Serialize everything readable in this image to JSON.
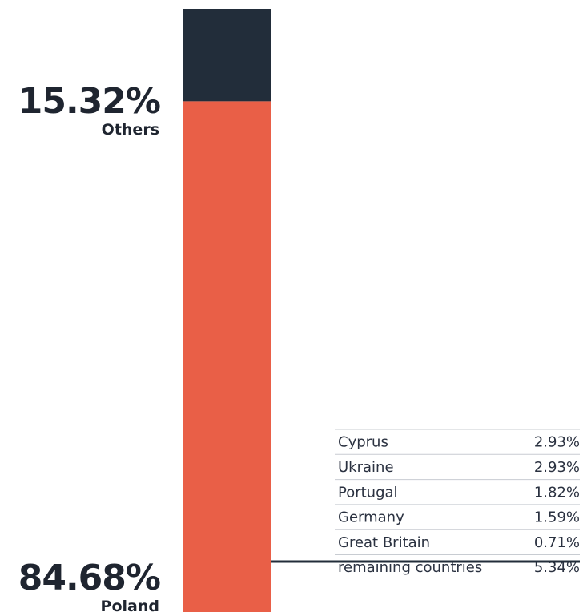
{
  "chart_data": {
    "type": "bar",
    "series": [
      {
        "name": "Poland",
        "color": "#e95f47",
        "values": [
          84.68
        ],
        "value_labels": [
          "84.68%"
        ]
      },
      {
        "name": "Others",
        "color": "#222d3a",
        "values": [
          15.32
        ],
        "value_labels": [
          "15.32%"
        ]
      }
    ],
    "ylim": [
      0,
      100
    ]
  },
  "breakdown": {
    "rows": [
      [
        "Cyprus",
        "2.93%"
      ],
      [
        "Ukraine",
        "2.93%"
      ],
      [
        "Portugal",
        "1.82%"
      ],
      [
        "Germany",
        "1.59%"
      ],
      [
        "Great Britain",
        "0.71%"
      ],
      [
        "remaining countries",
        "5.34%"
      ]
    ]
  }
}
